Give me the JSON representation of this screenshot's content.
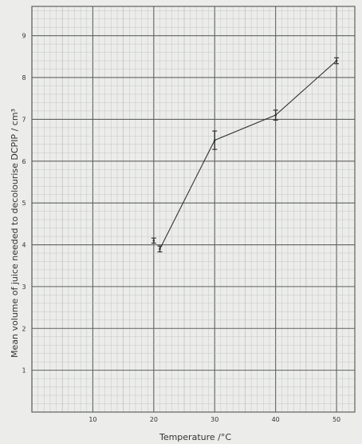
{
  "chart_data": {
    "type": "line",
    "title": "",
    "xlabel": "Temperature /°C",
    "ylabel": "Mean volume of juice needed to decolourise DCPIP / cm³",
    "xlim": [
      0,
      53
    ],
    "ylim": [
      0,
      9.7
    ],
    "xticks": [
      10,
      20,
      30,
      40,
      50
    ],
    "yticks": [
      1,
      2,
      3,
      4,
      5,
      6,
      7,
      8,
      9
    ],
    "grid": true,
    "series": [
      {
        "x": [
          21,
          30,
          40,
          50
        ],
        "y": [
          3.9,
          6.5,
          7.1,
          8.4
        ],
        "error": [
          0.07,
          0.22,
          0.12,
          0.07
        ]
      }
    ],
    "extra_points": [
      {
        "x": 20,
        "y": 4.1,
        "error": 0.06
      }
    ]
  },
  "colors": {
    "paper": "#ecedeb",
    "minor_grid": "#b9bcb9",
    "major_grid": "#5f625f",
    "line": "#333333"
  }
}
